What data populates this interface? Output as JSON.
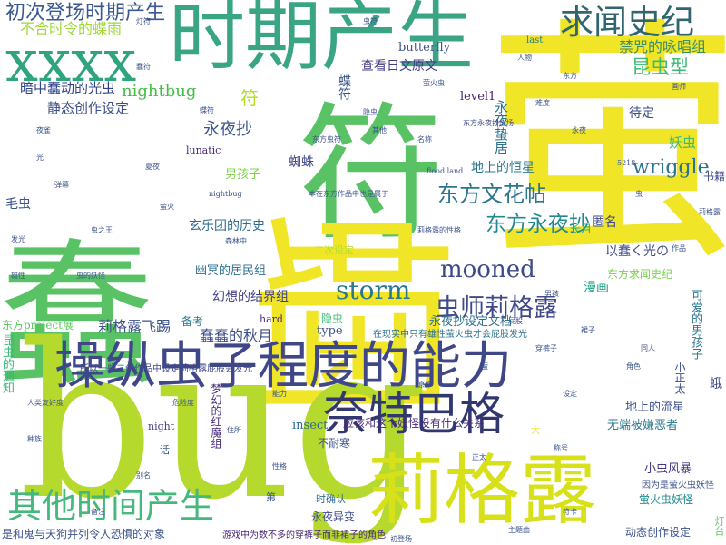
{
  "words": [
    {
      "text": "蠢",
      "color": "#59c264"
    },
    {
      "text": "符",
      "color": "#59c264"
    },
    {
      "text": "萤",
      "color": "#f0e526"
    },
    {
      "text": "蝈",
      "color": "#f0e526"
    },
    {
      "text": "bug",
      "color": "#b6d92e"
    },
    {
      "text": "时期产生",
      "color": "#3aa584"
    },
    {
      "text": "xxxx",
      "color": "#2fa47f"
    },
    {
      "text": "莉格露",
      "color": "#d8e019"
    },
    {
      "text": "操纵虫子程度的能力",
      "color": "#3f4789"
    },
    {
      "text": "奈特巴格",
      "color": "#31376f"
    },
    {
      "text": "其他时间产生",
      "color": "#44b97b"
    },
    {
      "text": "求闻史纪",
      "color": "#31666f"
    },
    {
      "text": "初次登场时期产生",
      "color": "#3b5890"
    },
    {
      "text": "storm",
      "color": "#29788e"
    },
    {
      "text": "虫师莉格露",
      "color": "#3e4a89"
    },
    {
      "text": "东方永夜抄",
      "color": "#24878e"
    },
    {
      "text": "东方文花帖",
      "color": "#2a768e"
    },
    {
      "text": "mooned",
      "color": "#3e4989"
    },
    {
      "text": "不合时令的蝶雨",
      "color": "#9ed93a"
    },
    {
      "text": "昆虫型",
      "color": "#3cbb75"
    },
    {
      "text": "wriggle",
      "color": "#2c718e"
    },
    {
      "text": "禁咒的咏唱组",
      "color": "#3b8d67"
    },
    {
      "text": "nightbug",
      "color": "#46bb47"
    },
    {
      "text": "永夜抄",
      "color": "#3a548c"
    },
    {
      "text": "符",
      "color": "#b3dc2b"
    },
    {
      "text": "暗中蠢动的光虫",
      "color": "#30428a"
    },
    {
      "text": "静态创作设定",
      "color": "#3e4e88"
    },
    {
      "text": "查看日文原文",
      "color": "#433d84"
    },
    {
      "text": "butterfly",
      "color": "#3b528b"
    },
    {
      "text": "level1",
      "color": "#481d6f"
    },
    {
      "text": "待定",
      "color": "#3e4c8a"
    },
    {
      "text": "蝶符",
      "color": "#3a548c"
    },
    {
      "text": "地上的恒星",
      "color": "#2b758e"
    },
    {
      "text": "永夜蛰居",
      "color": "#2c718e"
    },
    {
      "text": "妖虫",
      "color": "#3bbb75"
    },
    {
      "text": "男孩子",
      "color": "#7fd34e"
    },
    {
      "text": "蜘蛛",
      "color": "#3f4788"
    },
    {
      "text": "玄乐团的历史",
      "color": "#2f6c8e"
    },
    {
      "text": "匿名",
      "color": "#3e4989"
    },
    {
      "text": "长月",
      "color": "#22a884"
    },
    {
      "text": "书籍",
      "color": "#3f4788"
    },
    {
      "text": "毛虫",
      "color": "#3b528b"
    },
    {
      "text": "幽冥的居民组",
      "color": "#2c728e"
    },
    {
      "text": "幻想的结界组",
      "color": "#424086"
    },
    {
      "text": "以蠢く光の",
      "color": "#3e4a89"
    },
    {
      "text": "漫画",
      "color": "#20a486"
    },
    {
      "text": "东方求闻史纪",
      "color": "#7ad151"
    },
    {
      "text": "莉格露飞踢",
      "color": "#3b528b"
    },
    {
      "text": "蠢蠢的秋月",
      "color": "#3d4e8a"
    },
    {
      "text": "隐虫",
      "color": "#3dbc74"
    },
    {
      "text": "type",
      "color": "#3b528b"
    },
    {
      "text": "备考",
      "color": "#2a788e"
    },
    {
      "text": "hard",
      "color": "#472a7a"
    },
    {
      "text": "永夜抄设定文档",
      "color": "#2c728e"
    },
    {
      "text": "在现实中只有雄性萤火虫才会屁股发光",
      "color": "#2d708e"
    },
    {
      "text": "东方project展",
      "color": "#5cc863"
    },
    {
      "text": "昆虫的通知",
      "color": "#35b779"
    },
    {
      "text": "可爱的男孩子",
      "color": "#2a778e"
    },
    {
      "text": "小正太",
      "color": "#3a548c"
    },
    {
      "text": "蛾",
      "color": "#3f4889"
    },
    {
      "text": "梦幻的红魔组",
      "color": "#472d7b"
    },
    {
      "text": "night",
      "color": "#433e85"
    },
    {
      "text": "insect",
      "color": "#2f6b8e"
    },
    {
      "text": "应该和这个妖怪没有什么关系",
      "color": "#472c7a"
    },
    {
      "text": "地上的流星",
      "color": "#3b528b"
    },
    {
      "text": "无端被嫌恶者",
      "color": "#2a788e"
    },
    {
      "text": "不耐寒",
      "color": "#3b528b"
    },
    {
      "text": "小虫风暴",
      "color": "#453882"
    },
    {
      "text": "时确认",
      "color": "#2f6c8e"
    },
    {
      "text": "蛍火虫妖怪",
      "color": "#238a8d"
    },
    {
      "text": "永夜异变",
      "color": "#3e4c8a"
    },
    {
      "text": "话",
      "color": "#355f8d"
    },
    {
      "text": "第",
      "color": "#3a548c"
    },
    {
      "text": "因为是萤火虫妖怪",
      "color": "#3b528b"
    },
    {
      "text": "是和鬼与天狗并列令人恐惧的对象",
      "color": "#3b528b"
    },
    {
      "text": "游戏中为数不多的穿裤子而非裙子的角色",
      "color": "#482576"
    },
    {
      "text": "动态创作设定",
      "color": "#3b528b"
    },
    {
      "text": "灯台",
      "color": "#5ec962"
    },
    {
      "text": "大",
      "color": "#f0e526"
    },
    {
      "text": "last",
      "color": "#2a788e"
    },
    {
      "text": "lunatic",
      "color": "#482878"
    },
    {
      "text": "二次设定",
      "color": "#b5de2b"
    },
    {
      "text": "5218",
      "color": "#3a548c"
    },
    {
      "text": "所以一些二创作品中设定莉格露屁股会发光",
      "color": "#3e4a89"
    },
    {
      "text": "本在东方作品中也是属于",
      "color": "#3b528b"
    },
    {
      "text": "莉格露的性格",
      "color": "#3b528b"
    },
    {
      "text": "东方永夜抄出场",
      "color": "#3e4989"
    },
    {
      "text": "萤火虫",
      "color": "#3b528b"
    },
    {
      "text": "flood land",
      "color": "#3b528b"
    },
    {
      "text": "东方虫符",
      "color": "#3b528b"
    },
    {
      "text": "nightbug",
      "color": "#3b528b"
    },
    {
      "text": "森林中",
      "color": "#3b528b"
    },
    {
      "text": "夏夜",
      "color": "#3b528b"
    },
    {
      "text": "萤火",
      "color": "#3b528b"
    },
    {
      "text": "虫之王",
      "color": "#3b528b"
    },
    {
      "text": "虫的妖怪",
      "color": "#3b528b"
    },
    {
      "text": "光",
      "color": "#3b528b"
    },
    {
      "text": "夜雀",
      "color": "#3b528b"
    },
    {
      "text": "人物",
      "color": "#3b528b"
    },
    {
      "text": "东方",
      "color": "#3b528b"
    },
    {
      "text": "永夜",
      "color": "#3b528b"
    },
    {
      "text": "画师",
      "color": "#3b528b"
    },
    {
      "text": "莉格露",
      "color": "#3b528b"
    },
    {
      "text": "虫",
      "color": "#3b528b"
    },
    {
      "text": "同人",
      "color": "#3b528b"
    },
    {
      "text": "角色",
      "color": "#3b528b"
    },
    {
      "text": "设定",
      "color": "#3b528b"
    },
    {
      "text": "称号",
      "color": "#3b528b"
    },
    {
      "text": "萤",
      "color": "#3b528b"
    },
    {
      "text": "原作",
      "color": "#3b528b"
    },
    {
      "text": "性格",
      "color": "#3b528b"
    },
    {
      "text": "能力",
      "color": "#3b528b"
    },
    {
      "text": "住所",
      "color": "#3b528b"
    },
    {
      "text": "危险度",
      "color": "#3b528b"
    },
    {
      "text": "人类友好度",
      "color": "#3b528b"
    },
    {
      "text": "种族",
      "color": "#3b528b"
    },
    {
      "text": "别名",
      "color": "#3b528b"
    },
    {
      "text": "初登场",
      "color": "#3b528b"
    },
    {
      "text": "主题曲",
      "color": "#3b528b"
    },
    {
      "text": "符卡",
      "color": "#3b528b"
    },
    {
      "text": "虫符",
      "color": "#3b528b"
    },
    {
      "text": "灯符",
      "color": "#3b528b"
    },
    {
      "text": "蠢符",
      "color": "#3b528b"
    },
    {
      "text": "蝶符",
      "color": "#3b528b"
    },
    {
      "text": "隐虫",
      "color": "#3b528b"
    },
    {
      "text": "其他",
      "color": "#3b528b"
    },
    {
      "text": "名称",
      "color": "#3b528b"
    },
    {
      "text": "难度",
      "color": "#3b528b"
    },
    {
      "text": "作品",
      "color": "#3b528b"
    },
    {
      "text": "备注",
      "color": "#3b528b"
    },
    {
      "text": "弹幕",
      "color": "#3b528b"
    },
    {
      "text": "发光",
      "color": "#3b528b"
    },
    {
      "text": "雄性",
      "color": "#3b528b"
    },
    {
      "text": "屁股",
      "color": "#3b528b"
    },
    {
      "text": "穿裤子",
      "color": "#3b528b"
    },
    {
      "text": "裙子",
      "color": "#3b528b"
    },
    {
      "text": "男孩",
      "color": "#3b528b"
    },
    {
      "text": "正太",
      "color": "#3b528b"
    }
  ]
}
